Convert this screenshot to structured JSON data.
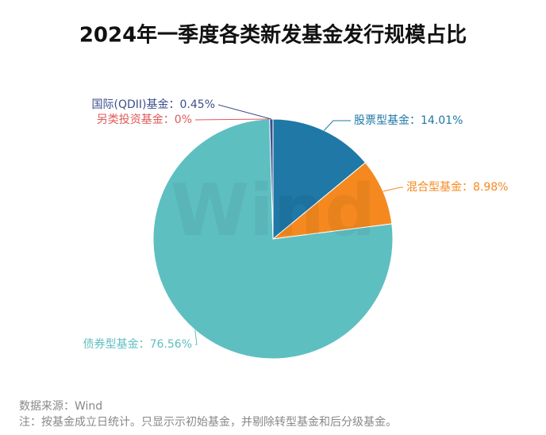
{
  "chart_data": {
    "type": "pie",
    "title": "2024年一季度各类新发基金发行规模占比",
    "categories": [
      "股票型基金",
      "混合型基金",
      "债券型基金",
      "另类投资基金",
      "国际(QDII)基金"
    ],
    "values": [
      14.01,
      8.98,
      76.56,
      0,
      0.45
    ],
    "value_labels": [
      "14.01%",
      "8.98%",
      "76.56%",
      "0%",
      "0.45%"
    ],
    "label_separator": "：",
    "colors": [
      "#1f78a6",
      "#f5891f",
      "#5ebfc1",
      "#e05a5a",
      "#3d4f8c"
    ],
    "watermark": "Wind",
    "source": "数据来源：Wind",
    "note": "注：按基金成立日统计。只显示示初始基金，并剔除转型基金和后分级基金。"
  }
}
